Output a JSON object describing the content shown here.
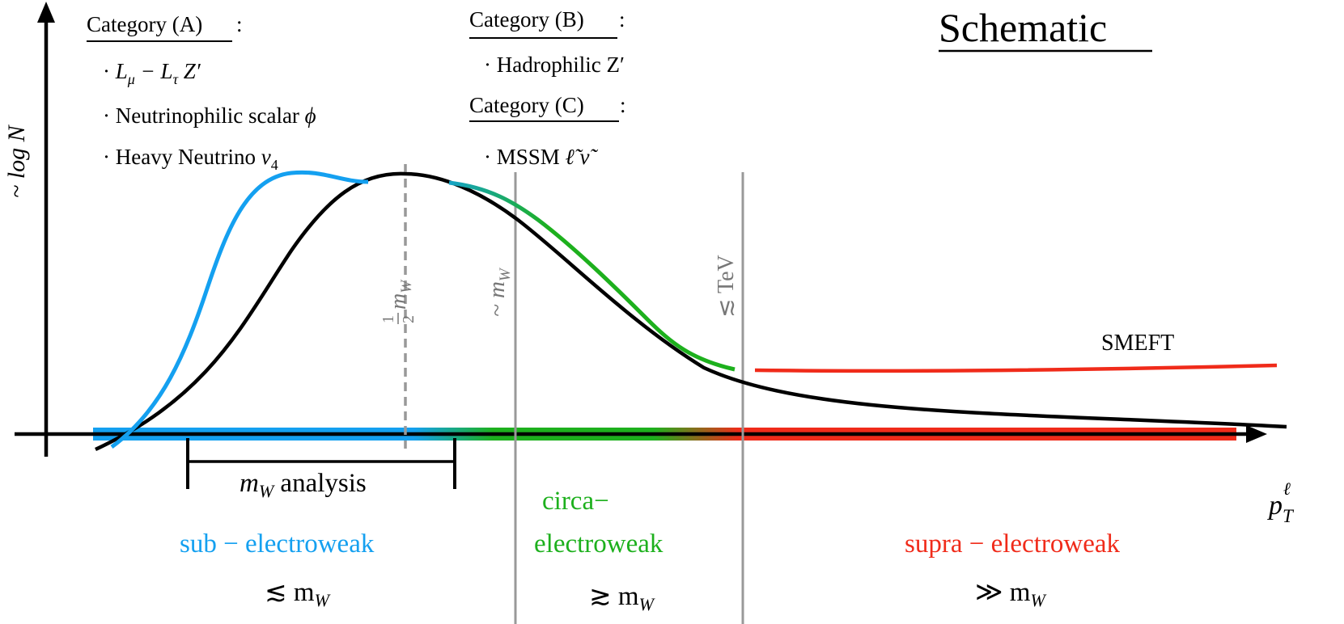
{
  "title": "Schematic",
  "axes": {
    "y_label": "~ log N",
    "x_label": "p",
    "x_label_sub": "T",
    "x_label_sup": "ℓ"
  },
  "categories": {
    "a": {
      "heading": "Category (A)",
      "colon": ":",
      "items": [
        {
          "prefix": "·",
          "text": "L",
          "sub": "μ",
          "mid": " − L",
          "sub2": "τ",
          "tail": " Z′"
        },
        {
          "prefix": "·",
          "text": "Neutrinophilic scalar ",
          "sym": "ϕ"
        },
        {
          "prefix": "·",
          "text": "Heavy Neutrino ",
          "sym": "ν",
          "sub": "4"
        }
      ]
    },
    "b": {
      "heading": "Category (B)",
      "colon": ":",
      "items": [
        {
          "prefix": "·",
          "text": "Hadrophilic Z′"
        }
      ]
    },
    "c": {
      "heading": "Category (C)",
      "colon": ":",
      "items": [
        {
          "prefix": "·",
          "text": "MSSM ",
          "sym": "ℓ̃ ν̃"
        }
      ]
    }
  },
  "markers": {
    "half_mw": {
      "frac_num": "1",
      "frac_den": "2",
      "text": "m",
      "sub": "W"
    },
    "approx_mw": {
      "text": "~ m",
      "sub": "W"
    },
    "tev": {
      "text": "≲ TeV"
    }
  },
  "analysis": {
    "text": "m",
    "sub": "W",
    "tail": " analysis"
  },
  "curve_labels": {
    "smeft": "SMEFT"
  },
  "regions": {
    "sub": {
      "label": "sub − electroweak",
      "scale": "≲ m",
      "scale_sub": "W"
    },
    "circa": {
      "label_line1": "circa−",
      "label_line2": "electroweak",
      "scale": "≳ m",
      "scale_sub": "W"
    },
    "supra": {
      "label": "supra − electroweak",
      "scale": "≫ m",
      "scale_sub": "W"
    }
  },
  "colors": {
    "blue": "#14a0f0",
    "green": "#1db01d",
    "red": "#f02b1a",
    "gray": "#999999",
    "black": "#000000"
  }
}
